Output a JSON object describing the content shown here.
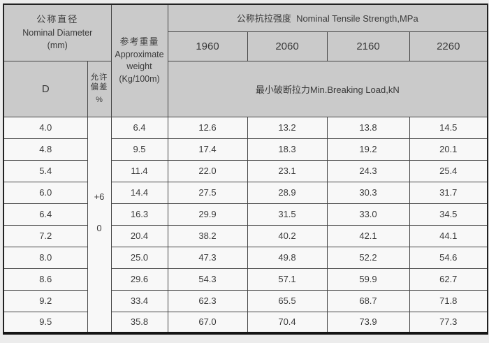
{
  "colors": {
    "page_background": "#ececec",
    "header_background": "#cacaca",
    "cell_background": "#f8f8f8",
    "border": "#454545",
    "text": "#3a3a3a"
  },
  "table": {
    "header": {
      "diameter": {
        "zh": "公称直径",
        "en": "Nominal Diameter",
        "unit": "(mm)"
      },
      "weight": {
        "zh": "参考重量",
        "en_line1": "Approximate",
        "en_line2": "weight",
        "unit": "(Kg/100m)"
      },
      "strength_title": "公称抗拉强度  Nominal Tensile Strength,MPa",
      "strength_grades": [
        "1960",
        "2060",
        "2160",
        "2260"
      ],
      "d_label": "D",
      "tolerance": {
        "line1": "允许",
        "line2": "偏差",
        "line3": "%"
      },
      "breaking_load_title": "最小破断拉力Min.Breaking Load,kN"
    },
    "tolerance_value": {
      "plus": "+6",
      "zero": "0"
    },
    "rows": [
      {
        "d": "4.0",
        "weight": "6.4",
        "loads": [
          "12.6",
          "13.2",
          "13.8",
          "14.5"
        ]
      },
      {
        "d": "4.8",
        "weight": "9.5",
        "loads": [
          "17.4",
          "18.3",
          "19.2",
          "20.1"
        ]
      },
      {
        "d": "5.4",
        "weight": "11.4",
        "loads": [
          "22.0",
          "23.1",
          "24.3",
          "25.4"
        ]
      },
      {
        "d": "6.0",
        "weight": "14.4",
        "loads": [
          "27.5",
          "28.9",
          "30.3",
          "31.7"
        ]
      },
      {
        "d": "6.4",
        "weight": "16.3",
        "loads": [
          "29.9",
          "31.5",
          "33.0",
          "34.5"
        ]
      },
      {
        "d": "7.2",
        "weight": "20.4",
        "loads": [
          "38.2",
          "40.2",
          "42.1",
          "44.1"
        ]
      },
      {
        "d": "8.0",
        "weight": "25.0",
        "loads": [
          "47.3",
          "49.8",
          "52.2",
          "54.6"
        ]
      },
      {
        "d": "8.6",
        "weight": "29.6",
        "loads": [
          "54.3",
          "57.1",
          "59.9",
          "62.7"
        ]
      },
      {
        "d": "9.2",
        "weight": "33.4",
        "loads": [
          "62.3",
          "65.5",
          "68.7",
          "71.8"
        ]
      },
      {
        "d": "9.5",
        "weight": "35.8",
        "loads": [
          "67.0",
          "70.4",
          "73.9",
          "77.3"
        ]
      }
    ]
  }
}
